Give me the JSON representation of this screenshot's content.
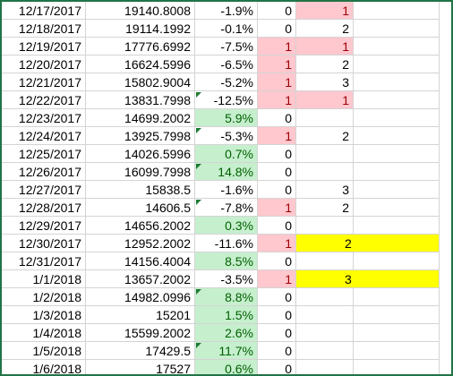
{
  "table": {
    "rows": [
      {
        "cells": [
          "12/17/2017",
          "19140.8008",
          "-1.9%",
          "0",
          "1"
        ],
        "fills": [
          null,
          null,
          null,
          null,
          "bad"
        ]
      },
      {
        "cells": [
          "12/18/2017",
          "19114.1992",
          "-0.1%",
          "0",
          "2"
        ],
        "fills": [
          null,
          null,
          null,
          null,
          null
        ]
      },
      {
        "cells": [
          "12/19/2017",
          "17776.6992",
          "-7.5%",
          "1",
          "1"
        ],
        "fills": [
          null,
          null,
          null,
          "bad",
          "bad"
        ]
      },
      {
        "cells": [
          "12/20/2017",
          "16624.5996",
          "-6.5%",
          "1",
          "2"
        ],
        "fills": [
          null,
          null,
          null,
          "bad",
          null
        ]
      },
      {
        "cells": [
          "12/21/2017",
          "15802.9004",
          "-5.2%",
          "1",
          "3"
        ],
        "fills": [
          null,
          null,
          null,
          "bad",
          null
        ]
      },
      {
        "cells": [
          "12/22/2017",
          "13831.7998",
          "-12.5%",
          "1",
          "1"
        ],
        "fills": [
          null,
          null,
          null,
          "bad",
          "bad"
        ],
        "flag": true
      },
      {
        "cells": [
          "12/23/2017",
          "14699.2002",
          "5.9%",
          "0",
          null
        ],
        "fills": [
          null,
          null,
          "good",
          null,
          null
        ]
      },
      {
        "cells": [
          "12/24/2017",
          "13925.7998",
          "-5.3%",
          "1",
          "2"
        ],
        "fills": [
          null,
          null,
          null,
          "bad",
          null
        ],
        "flag": true
      },
      {
        "cells": [
          "12/25/2017",
          "14026.5996",
          "0.7%",
          "0",
          null
        ],
        "fills": [
          null,
          null,
          "good",
          null,
          null
        ]
      },
      {
        "cells": [
          "12/26/2017",
          "16099.7998",
          "14.8%",
          "0",
          null
        ],
        "fills": [
          null,
          null,
          "good",
          null,
          null
        ],
        "flag": true
      },
      {
        "cells": [
          "12/27/2017",
          "15838.5",
          "-1.6%",
          "0",
          "3"
        ],
        "fills": [
          null,
          null,
          null,
          null,
          null
        ]
      },
      {
        "cells": [
          "12/28/2017",
          "14606.5",
          "-7.8%",
          "1",
          "2"
        ],
        "fills": [
          null,
          null,
          null,
          "bad",
          null
        ],
        "flag": true
      },
      {
        "cells": [
          "12/29/2017",
          "14656.2002",
          "0.3%",
          "0",
          null
        ],
        "fills": [
          null,
          null,
          "good",
          null,
          null
        ]
      },
      {
        "cells": [
          "12/30/2017",
          "12952.2002",
          "-11.6%",
          "1",
          "2"
        ],
        "fills": [
          null,
          null,
          null,
          "bad",
          "yellow"
        ]
      },
      {
        "cells": [
          "12/31/2017",
          "14156.4004",
          "8.5%",
          "0",
          null
        ],
        "fills": [
          null,
          null,
          "good",
          null,
          null
        ]
      },
      {
        "cells": [
          "1/1/2018",
          "13657.2002",
          "-3.5%",
          "1",
          "3"
        ],
        "fills": [
          null,
          null,
          null,
          "bad",
          "yellow"
        ]
      },
      {
        "cells": [
          "1/2/2018",
          "14982.0996",
          "8.8%",
          "0",
          null
        ],
        "fills": [
          null,
          null,
          "good",
          null,
          null
        ],
        "flag": true
      },
      {
        "cells": [
          "1/3/2018",
          "15201",
          "1.5%",
          "0",
          null
        ],
        "fills": [
          null,
          null,
          "good",
          null,
          null
        ]
      },
      {
        "cells": [
          "1/4/2018",
          "15599.2002",
          "2.6%",
          "0",
          null
        ],
        "fills": [
          null,
          null,
          "good",
          null,
          null
        ]
      },
      {
        "cells": [
          "1/5/2018",
          "17429.5",
          "11.7%",
          "0",
          null
        ],
        "fills": [
          null,
          null,
          "good",
          null,
          null
        ],
        "flag": true
      },
      {
        "cells": [
          "1/6/2018",
          "17527",
          "0.6%",
          "0",
          null
        ],
        "fills": [
          null,
          null,
          "good",
          null,
          null
        ]
      }
    ]
  }
}
